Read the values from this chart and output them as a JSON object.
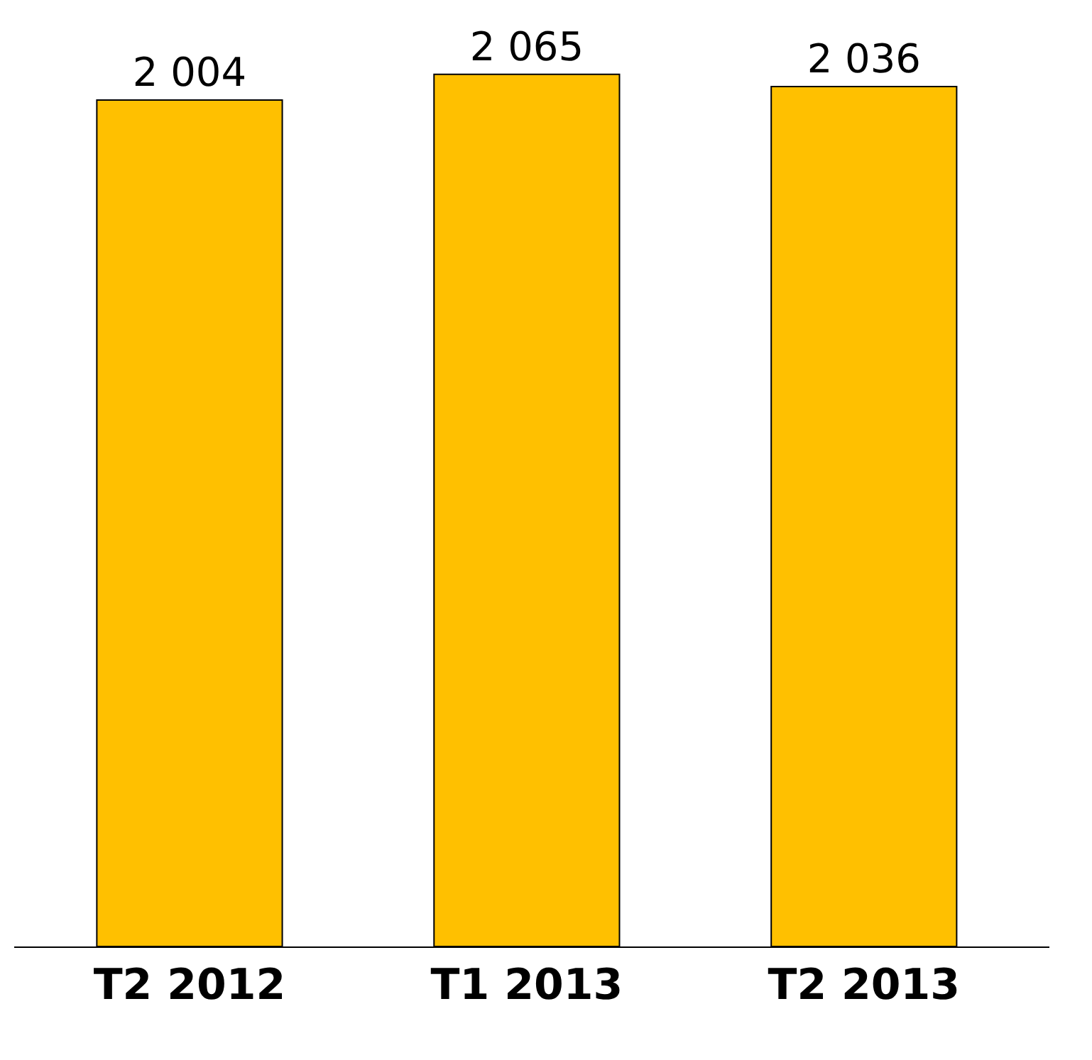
{
  "chart_data": {
    "type": "bar",
    "categories": [
      "T2 2012",
      "T1 2013",
      "T2 2013"
    ],
    "values": [
      2004,
      2065,
      2036
    ],
    "value_labels": [
      "2 004",
      "2 065",
      "2 036"
    ],
    "color": "#ffc000",
    "grid": false,
    "legend": false
  }
}
